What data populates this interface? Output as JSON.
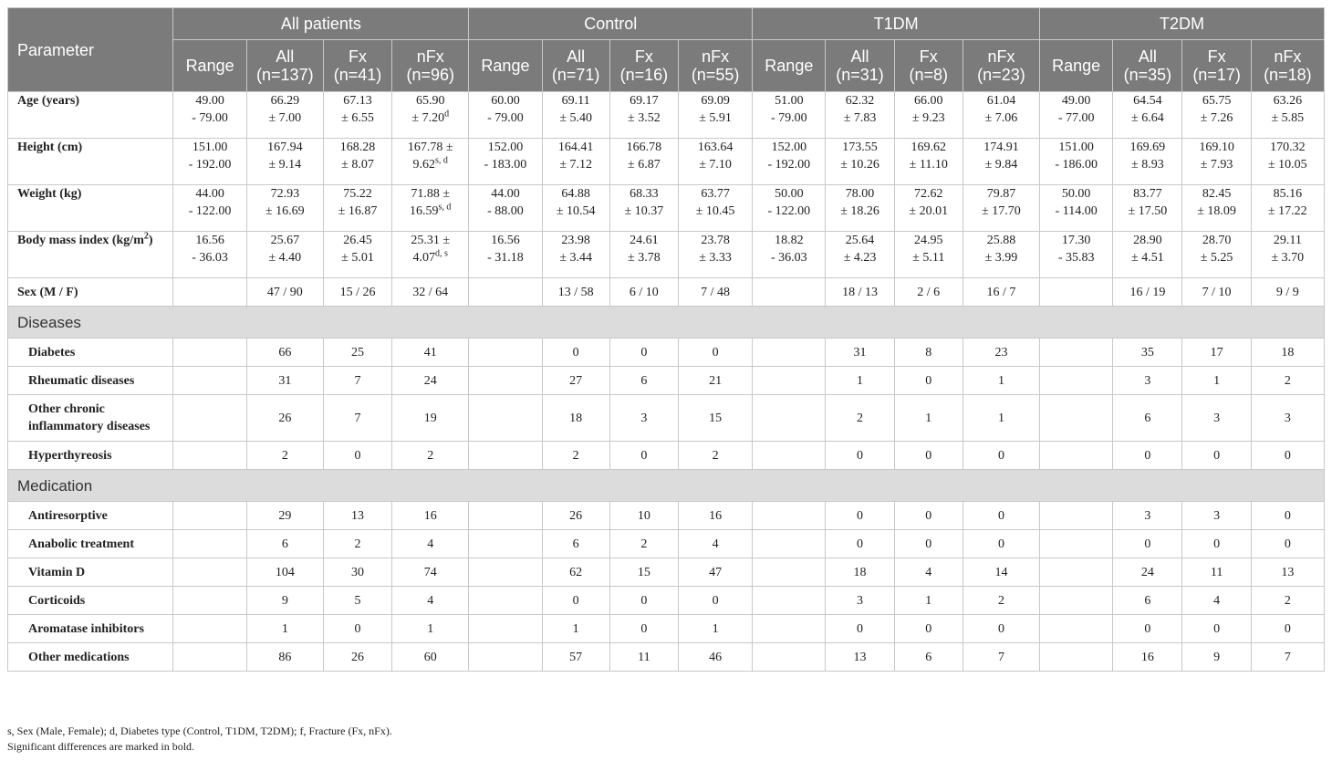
{
  "header": {
    "parameter": "Parameter",
    "groups": [
      "All patients",
      "Control",
      "T1DM",
      "T2DM"
    ],
    "subheaders": [
      [
        "Range",
        "All\n(n=137)",
        "Fx\n(n=41)",
        "nFx\n(n=96)"
      ],
      [
        "Range",
        "All\n(n=71)",
        "Fx\n(n=16)",
        "nFx\n(n=55)"
      ],
      [
        "Range",
        "All\n(n=31)",
        "Fx\n(n=8)",
        "nFx\n(n=23)"
      ],
      [
        "Range",
        "All\n(n=35)",
        "Fx\n(n=17)",
        "nFx\n(n=18)"
      ]
    ]
  },
  "rows": [
    {
      "label": "Age (years)",
      "cells": [
        [
          "49.00",
          "- 79.00"
        ],
        [
          "66.29",
          "± 7.00"
        ],
        [
          "67.13",
          "± 6.55"
        ],
        [
          "65.90",
          "± 7.20"
        ],
        [
          "60.00",
          "- 79.00"
        ],
        [
          "69.11",
          "± 5.40"
        ],
        [
          "69.17",
          "± 3.52"
        ],
        [
          "69.09",
          "± 5.91"
        ],
        [
          "51.00",
          "- 79.00"
        ],
        [
          "62.32",
          "± 7.83"
        ],
        [
          "66.00",
          "± 9.23"
        ],
        [
          "61.04",
          "± 7.06"
        ],
        [
          "49.00",
          "- 77.00"
        ],
        [
          "64.54",
          "± 6.64"
        ],
        [
          "65.75",
          "± 7.26"
        ],
        [
          "63.26",
          "± 5.85"
        ]
      ],
      "sups": {
        "3": "d"
      }
    },
    {
      "label": "Height (cm)",
      "cells": [
        [
          "151.00",
          "- 192.00"
        ],
        [
          "167.94",
          "± 9.14"
        ],
        [
          "168.28",
          "± 8.07"
        ],
        [
          "167.78 ±",
          "9.62"
        ],
        [
          "152.00",
          "- 183.00"
        ],
        [
          "164.41",
          "± 7.12"
        ],
        [
          "166.78",
          "± 6.87"
        ],
        [
          "163.64",
          "± 7.10"
        ],
        [
          "152.00",
          "- 192.00"
        ],
        [
          "173.55",
          "± 10.26"
        ],
        [
          "169.62",
          "± 11.10"
        ],
        [
          "174.91",
          "± 9.84"
        ],
        [
          "151.00",
          "- 186.00"
        ],
        [
          "169.69",
          "± 8.93"
        ],
        [
          "169.10",
          "± 7.93"
        ],
        [
          "170.32",
          "± 10.05"
        ]
      ],
      "sups": {
        "3": "s, d"
      }
    },
    {
      "label": "Weight (kg)",
      "cells": [
        [
          "44.00",
          "- 122.00"
        ],
        [
          "72.93",
          "± 16.69"
        ],
        [
          "75.22",
          "± 16.87"
        ],
        [
          "71.88 ±",
          "16.59"
        ],
        [
          "44.00",
          "- 88.00"
        ],
        [
          "64.88",
          "± 10.54"
        ],
        [
          "68.33",
          "± 10.37"
        ],
        [
          "63.77",
          "± 10.45"
        ],
        [
          "50.00",
          "- 122.00"
        ],
        [
          "78.00",
          "± 18.26"
        ],
        [
          "72.62",
          "± 20.01"
        ],
        [
          "79.87",
          "± 17.70"
        ],
        [
          "50.00",
          "- 114.00"
        ],
        [
          "83.77",
          "± 17.50"
        ],
        [
          "82.45",
          "± 18.09"
        ],
        [
          "85.16",
          "± 17.22"
        ]
      ],
      "sups": {
        "3": "s, d"
      }
    },
    {
      "label": "Body mass index (kg/m",
      "label_sup": "2",
      "label_end": ")",
      "cells": [
        [
          "16.56",
          "- 36.03"
        ],
        [
          "25.67",
          "± 4.40"
        ],
        [
          "26.45",
          "± 5.01"
        ],
        [
          "25.31 ±",
          "4.07"
        ],
        [
          "16.56",
          "- 31.18"
        ],
        [
          "23.98",
          "± 3.44"
        ],
        [
          "24.61",
          "± 3.78"
        ],
        [
          "23.78",
          "± 3.33"
        ],
        [
          "18.82",
          "- 36.03"
        ],
        [
          "25.64",
          "± 4.23"
        ],
        [
          "24.95",
          "± 5.11"
        ],
        [
          "25.88",
          "± 3.99"
        ],
        [
          "17.30",
          "- 35.83"
        ],
        [
          "28.90",
          "± 4.51"
        ],
        [
          "28.70",
          "± 5.25"
        ],
        [
          "29.11",
          "± 3.70"
        ]
      ],
      "sups": {
        "3": "d, s"
      }
    }
  ],
  "sex_row": {
    "label": "Sex (M / F)",
    "cells": [
      "",
      "47 / 90",
      "15 / 26",
      "32 / 64",
      "",
      "13 / 58",
      "6 / 10",
      "7 / 48",
      "",
      "18 / 13",
      "2 / 6",
      "16 / 7",
      "",
      "16 / 19",
      "7 / 10",
      "9 / 9"
    ]
  },
  "sections": [
    {
      "title": "Diseases",
      "rows": [
        {
          "label": "Diabetes",
          "cells": [
            "",
            "66",
            "25",
            "41",
            "",
            "0",
            "0",
            "0",
            "",
            "31",
            "8",
            "23",
            "",
            "35",
            "17",
            "18"
          ]
        },
        {
          "label": "Rheumatic diseases",
          "cells": [
            "",
            "31",
            "7",
            "24",
            "",
            "27",
            "6",
            "21",
            "",
            "1",
            "0",
            "1",
            "",
            "3",
            "1",
            "2"
          ]
        },
        {
          "label": "Other chronic\ninflammatory diseases",
          "cells": [
            "",
            "26",
            "7",
            "19",
            "",
            "18",
            "3",
            "15",
            "",
            "2",
            "1",
            "1",
            "",
            "6",
            "3",
            "3"
          ]
        },
        {
          "label": "Hyperthyreosis",
          "cells": [
            "",
            "2",
            "0",
            "2",
            "",
            "2",
            "0",
            "2",
            "",
            "0",
            "0",
            "0",
            "",
            "0",
            "0",
            "0"
          ]
        }
      ]
    },
    {
      "title": "Medication",
      "rows": [
        {
          "label": "Antiresorptive",
          "cells": [
            "",
            "29",
            "13",
            "16",
            "",
            "26",
            "10",
            "16",
            "",
            "0",
            "0",
            "0",
            "",
            "3",
            "3",
            "0"
          ]
        },
        {
          "label": "Anabolic treatment",
          "cells": [
            "",
            "6",
            "2",
            "4",
            "",
            "6",
            "2",
            "4",
            "",
            "0",
            "0",
            "0",
            "",
            "0",
            "0",
            "0"
          ]
        },
        {
          "label": "Vitamin D",
          "cells": [
            "",
            "104",
            "30",
            "74",
            "",
            "62",
            "15",
            "47",
            "",
            "18",
            "4",
            "14",
            "",
            "24",
            "11",
            "13"
          ]
        },
        {
          "label": "Corticoids",
          "cells": [
            "",
            "9",
            "5",
            "4",
            "",
            "0",
            "0",
            "0",
            "",
            "3",
            "1",
            "2",
            "",
            "6",
            "4",
            "2"
          ]
        },
        {
          "label": "Aromatase inhibitors",
          "cells": [
            "",
            "1",
            "0",
            "1",
            "",
            "1",
            "0",
            "1",
            "",
            "0",
            "0",
            "0",
            "",
            "0",
            "0",
            "0"
          ]
        },
        {
          "label": "Other medications",
          "cells": [
            "",
            "86",
            "26",
            "60",
            "",
            "57",
            "11",
            "46",
            "",
            "13",
            "6",
            "7",
            "",
            "16",
            "9",
            "7"
          ]
        }
      ]
    }
  ],
  "notes": [
    "s, Sex (Male, Female); d, Diabetes type (Control, T1DM, T2DM); f, Fracture (Fx, nFx).",
    "Significant differences are marked in bold."
  ]
}
